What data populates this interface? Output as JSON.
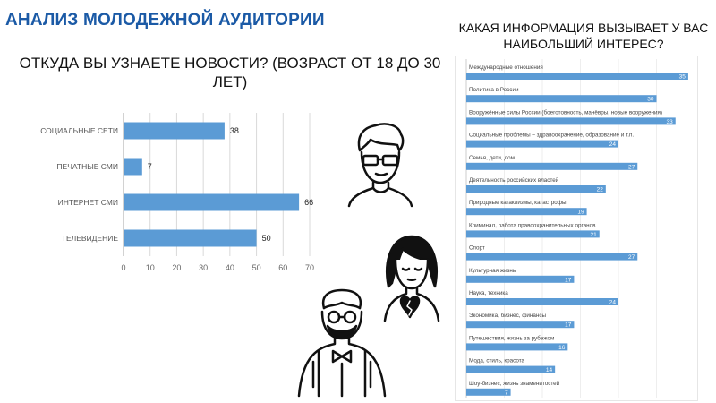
{
  "header": {
    "title": "АНАЛИЗ МОЛОДЕЖНОЙ АУДИТОРИИ",
    "left_question": "ОТКУДА ВЫ УЗНАЕТЕ НОВОСТИ? (ВОЗРАСТ ОТ 18 ДО 30 ЛЕТ)",
    "right_question": "КАКАЯ ИНФОРМАЦИЯ ВЫЗЫВАЕТ У ВАС НАИБОЛЬШИЙ ИНТЕРЕС?"
  },
  "colors": {
    "bar": "#5b9bd5",
    "title": "#1b5aa6",
    "grid": "#d9d9d9"
  },
  "icons": [
    "young-man-icon",
    "young-woman-broken-heart-icon",
    "elderly-man-bowtie-icon"
  ],
  "chart_data": [
    {
      "type": "bar",
      "orientation": "horizontal",
      "title": "ОТКУДА ВЫ УЗНАЕТЕ НОВОСТИ? (ВОЗРАСТ ОТ 18 ДО 30 ЛЕТ)",
      "categories": [
        "СОЦИАЛЬНЫЕ СЕТИ",
        "ПЕЧАТНЫЕ СМИ",
        "ИНТЕРНЕТ СМИ",
        "ТЕЛЕВИДЕНИЕ"
      ],
      "values": [
        38,
        7,
        66,
        50
      ],
      "xlim": [
        0,
        70
      ],
      "xticks": [
        0,
        10,
        20,
        30,
        40,
        50,
        60,
        70
      ],
      "grid": true,
      "data_labels": true
    },
    {
      "type": "bar",
      "orientation": "horizontal",
      "title": "КАКАЯ ИНФОРМАЦИЯ ВЫЗЫВАЕТ У ВАС НАИБОЛЬШИЙ ИНТЕРЕС?",
      "categories": [
        "Международные отношения",
        "Политика в России",
        "Вооружённые силы России (боеготовность, манёвры, новые вооружения)",
        "Социальные проблемы – здравоохранение, образование и т.п.",
        "Семья, дети, дом",
        "Деятельность российских властей",
        "Природные катаклизмы, катастрофы",
        "Криминал, работа правоохранительных органов",
        "Спорт",
        "Культурная жизнь",
        "Наука, техника",
        "Экономика, бизнес, финансы",
        "Путешествия, жизнь за рубежом",
        "Мода, стиль, красота",
        "Шоу-бизнес, жизнь знаменитостей"
      ],
      "values": [
        35,
        30,
        33,
        24,
        27,
        22,
        19,
        21,
        27,
        17,
        24,
        17,
        16,
        14,
        7
      ],
      "xlim": [
        0,
        36
      ],
      "grid": true,
      "data_labels": true
    }
  ]
}
